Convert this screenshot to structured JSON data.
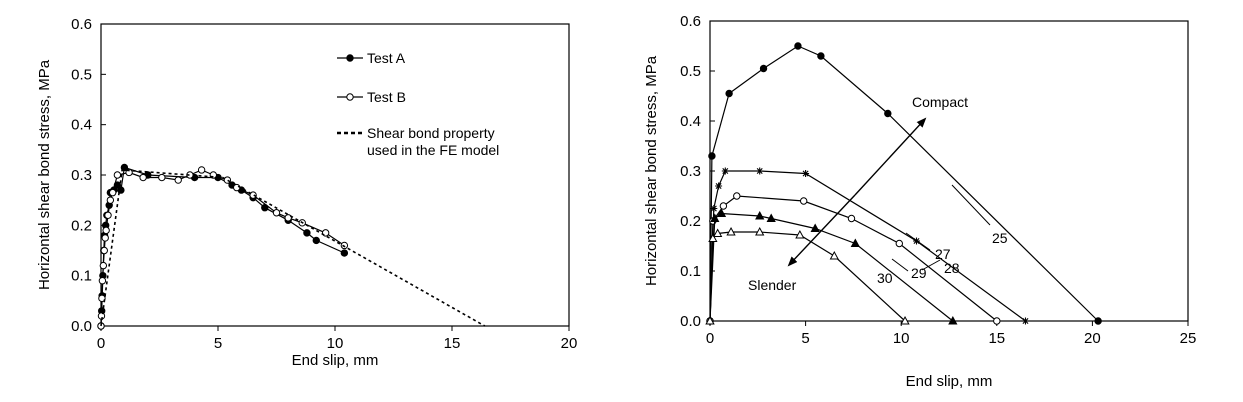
{
  "chart_data": [
    {
      "type": "line",
      "xlabel": "End slip, mm",
      "ylabel": "Horizontal shear bond stress, MPa",
      "xlim": [
        0,
        20
      ],
      "ylim": [
        0,
        0.6
      ],
      "xticks": [
        "0",
        "5",
        "10",
        "15",
        "20"
      ],
      "yticks": [
        "0.0",
        "0.1",
        "0.2",
        "0.3",
        "0.4",
        "0.5",
        "0.6"
      ],
      "grid": false,
      "legend_position": "top-right",
      "series": [
        {
          "name": "Test A",
          "marker": "filled-circle",
          "line": "solid",
          "points": [
            [
              0,
              0
            ],
            [
              0.03,
              0.03
            ],
            [
              0.05,
              0.06
            ],
            [
              0.08,
              0.1
            ],
            [
              0.12,
              0.15
            ],
            [
              0.15,
              0.18
            ],
            [
              0.2,
              0.2
            ],
            [
              0.25,
              0.22
            ],
            [
              0.35,
              0.24
            ],
            [
              0.4,
              0.265
            ],
            [
              0.55,
              0.27
            ],
            [
              0.7,
              0.28
            ],
            [
              0.85,
              0.27
            ],
            [
              1.0,
              0.315
            ],
            [
              2.0,
              0.3
            ],
            [
              4.0,
              0.295
            ],
            [
              5.0,
              0.295
            ],
            [
              5.6,
              0.28
            ],
            [
              6.0,
              0.27
            ],
            [
              6.5,
              0.255
            ],
            [
              7.0,
              0.235
            ],
            [
              8.0,
              0.21
            ],
            [
              8.8,
              0.185
            ],
            [
              9.2,
              0.17
            ],
            [
              10.4,
              0.145
            ]
          ]
        },
        {
          "name": "Test B",
          "marker": "open-circle",
          "line": "solid",
          "points": [
            [
              0,
              0
            ],
            [
              0.02,
              0.02
            ],
            [
              0.04,
              0.055
            ],
            [
              0.06,
              0.09
            ],
            [
              0.1,
              0.12
            ],
            [
              0.14,
              0.15
            ],
            [
              0.18,
              0.175
            ],
            [
              0.22,
              0.19
            ],
            [
              0.3,
              0.22
            ],
            [
              0.4,
              0.25
            ],
            [
              0.5,
              0.265
            ],
            [
              0.7,
              0.3
            ],
            [
              1.2,
              0.305
            ],
            [
              1.8,
              0.295
            ],
            [
              2.6,
              0.295
            ],
            [
              3.3,
              0.29
            ],
            [
              3.8,
              0.3
            ],
            [
              4.3,
              0.31
            ],
            [
              4.8,
              0.3
            ],
            [
              5.4,
              0.29
            ],
            [
              5.8,
              0.275
            ],
            [
              6.5,
              0.26
            ],
            [
              7.5,
              0.225
            ],
            [
              8.0,
              0.215
            ],
            [
              8.6,
              0.205
            ],
            [
              9.6,
              0.185
            ],
            [
              10.4,
              0.16
            ]
          ]
        },
        {
          "name": "Shear bond property used in the FE model",
          "marker": "none",
          "line": "dashed",
          "points": [
            [
              0,
              0
            ],
            [
              0.9,
              0.31
            ],
            [
              5.2,
              0.295
            ],
            [
              16.4,
              0
            ]
          ]
        }
      ]
    },
    {
      "type": "line",
      "xlabel": "End slip, mm",
      "ylabel": "Horizontal shear bond stress, MPa",
      "xlim": [
        0,
        25
      ],
      "ylim": [
        0,
        0.6
      ],
      "xticks": [
        "0",
        "5",
        "10",
        "15",
        "20",
        "25"
      ],
      "yticks": [
        "0.0",
        "0.1",
        "0.2",
        "0.3",
        "0.4",
        "0.5",
        "0.6"
      ],
      "grid": false,
      "annotations": {
        "compact": "Compact",
        "slender": "Slender"
      },
      "series": [
        {
          "name": "25",
          "marker": "filled-circle",
          "points": [
            [
              0,
              0
            ],
            [
              0.1,
              0.33
            ],
            [
              1.0,
              0.455
            ],
            [
              2.8,
              0.505
            ],
            [
              4.6,
              0.55
            ],
            [
              5.8,
              0.53
            ],
            [
              9.3,
              0.415
            ],
            [
              20.3,
              0
            ]
          ]
        },
        {
          "name": "27",
          "marker": "star",
          "points": [
            [
              0,
              0
            ],
            [
              0.2,
              0.225
            ],
            [
              0.45,
              0.27
            ],
            [
              0.8,
              0.3
            ],
            [
              2.6,
              0.3
            ],
            [
              5.0,
              0.295
            ],
            [
              10.8,
              0.16
            ],
            [
              16.5,
              0
            ]
          ]
        },
        {
          "name": "28",
          "marker": "open-circle",
          "points": [
            [
              0,
              0
            ],
            [
              0.15,
              0.2
            ],
            [
              0.7,
              0.23
            ],
            [
              1.4,
              0.25
            ],
            [
              4.9,
              0.24
            ],
            [
              7.4,
              0.205
            ],
            [
              9.9,
              0.155
            ],
            [
              15.0,
              0
            ]
          ]
        },
        {
          "name": "29",
          "marker": "filled-triangle",
          "points": [
            [
              0,
              0
            ],
            [
              0.25,
              0.205
            ],
            [
              0.6,
              0.215
            ],
            [
              2.6,
              0.21
            ],
            [
              3.2,
              0.205
            ],
            [
              5.5,
              0.185
            ],
            [
              7.6,
              0.155
            ],
            [
              12.7,
              0
            ]
          ]
        },
        {
          "name": "30",
          "marker": "open-triangle",
          "points": [
            [
              0,
              0
            ],
            [
              0.15,
              0.165
            ],
            [
              0.4,
              0.175
            ],
            [
              1.1,
              0.178
            ],
            [
              2.6,
              0.178
            ],
            [
              4.7,
              0.172
            ],
            [
              6.5,
              0.13
            ],
            [
              10.2,
              0
            ]
          ]
        }
      ]
    }
  ]
}
